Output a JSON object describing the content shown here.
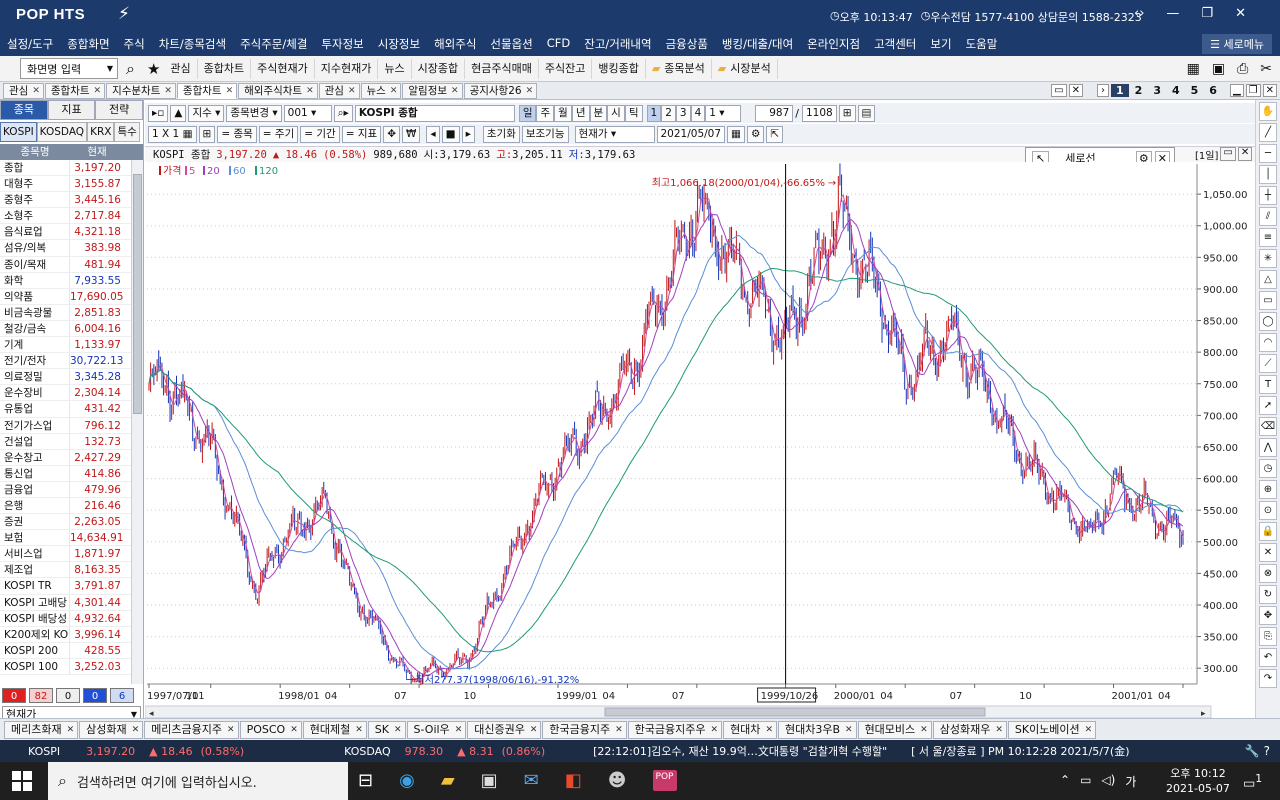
{
  "app": {
    "logo": "POP HTS",
    "clock": "오후 10:13:47",
    "contact": "우수전담 1577-4100 상담문의 1588-2323",
    "restore_menu": "세로메뉴"
  },
  "menu": [
    "설정/도구",
    "종합화면",
    "주식",
    "차트/종목검색",
    "주식주문/체결",
    "투자정보",
    "시장정보",
    "해외주식",
    "선물옵션",
    "CFD",
    "잔고/거래내역",
    "금융상품",
    "뱅킹/대출/대여",
    "온라인지점",
    "고객센터",
    "보기",
    "도움말"
  ],
  "toolbar": {
    "screen_input": "화면명 입력",
    "items": [
      "관심",
      "종합차트",
      "주식현재가",
      "지수현재가",
      "뉴스",
      "시장종합",
      "현금주식매매",
      "주식잔고",
      "뱅킹종합"
    ],
    "folders": [
      "종목분석",
      "시장분석"
    ]
  },
  "window_tabs": [
    "관심",
    "종합차트",
    "지수분차트",
    "종합차트",
    "해외주식차트",
    "관심",
    "뉴스",
    "알림정보",
    "공지사항26"
  ],
  "active_window_tab": 3,
  "window_pages": [
    "1",
    "2",
    "3",
    "4",
    "5",
    "6"
  ],
  "left": {
    "tabs": [
      "종목",
      "지표",
      "전략"
    ],
    "subtabs": [
      "KOSPI",
      "KOSDAQ",
      "KRX",
      "특수"
    ],
    "head_name": "종목명",
    "head_value": "현재",
    "rows": [
      {
        "name": "종합",
        "value": "3,197.20",
        "color": "red"
      },
      {
        "name": "대형주",
        "value": "3,155.87",
        "color": "red"
      },
      {
        "name": "중형주",
        "value": "3,445.16",
        "color": "red"
      },
      {
        "name": "소형주",
        "value": "2,717.84",
        "color": "red"
      },
      {
        "name": "음식료업",
        "value": "4,321.18",
        "color": "red"
      },
      {
        "name": "섬유/의복",
        "value": "383.98",
        "color": "red"
      },
      {
        "name": "종이/목재",
        "value": "481.94",
        "color": "red"
      },
      {
        "name": "화학",
        "value": "7,933.55",
        "color": "blue"
      },
      {
        "name": "의약품",
        "value": "17,690.05",
        "color": "red"
      },
      {
        "name": "비금속광물",
        "value": "2,851.83",
        "color": "red"
      },
      {
        "name": "철강/금속",
        "value": "6,004.16",
        "color": "red"
      },
      {
        "name": "기계",
        "value": "1,133.97",
        "color": "red"
      },
      {
        "name": "전기/전자",
        "value": "30,722.13",
        "color": "blue"
      },
      {
        "name": "의료정밀",
        "value": "3,345.28",
        "color": "blue"
      },
      {
        "name": "운수장비",
        "value": "2,304.14",
        "color": "red"
      },
      {
        "name": "유통업",
        "value": "431.42",
        "color": "red"
      },
      {
        "name": "전기가스업",
        "value": "796.12",
        "color": "red"
      },
      {
        "name": "건설업",
        "value": "132.73",
        "color": "red"
      },
      {
        "name": "운수창고",
        "value": "2,427.29",
        "color": "red"
      },
      {
        "name": "통신업",
        "value": "414.86",
        "color": "red"
      },
      {
        "name": "금융업",
        "value": "479.96",
        "color": "red"
      },
      {
        "name": "은행",
        "value": "216.46",
        "color": "red"
      },
      {
        "name": "증권",
        "value": "2,263.05",
        "color": "red"
      },
      {
        "name": "보험",
        "value": "14,634.91",
        "color": "red"
      },
      {
        "name": "서비스업",
        "value": "1,871.97",
        "color": "red"
      },
      {
        "name": "제조업",
        "value": "8,163.35",
        "color": "red"
      },
      {
        "name": "KOSPI TR",
        "value": "3,791.87",
        "color": "red"
      },
      {
        "name": "KOSPI 고배당",
        "value": "4,301.44",
        "color": "red"
      },
      {
        "name": "KOSPI 배당성",
        "value": "4,932.64",
        "color": "red"
      },
      {
        "name": "K200제외 KO",
        "value": "3,996.14",
        "color": "red"
      },
      {
        "name": "KOSPI 200",
        "value": "428.55",
        "color": "red"
      },
      {
        "name": "KOSPI 100",
        "value": "3,252.03",
        "color": "red"
      }
    ],
    "counts": [
      "0",
      "82",
      "0",
      "0",
      "6"
    ],
    "dropdown": "현재가"
  },
  "chart_controls": {
    "index_label": "지수",
    "change_label": "종목변경",
    "code": "001",
    "name": "KOSPI 종합",
    "periods": [
      "일",
      "주",
      "월",
      "년",
      "분",
      "시",
      "틱"
    ],
    "period_nums": [
      "1",
      "2",
      "3",
      "4"
    ],
    "period_sel": "1",
    "count": "987",
    "total": "1108",
    "row2_a": "1 X 1",
    "row2_b": "= 종목",
    "row2_c": "= 주기",
    "row2_d": "= 기간",
    "row2_e": "= 지표",
    "init_btn": "초기화",
    "aux_btn": "보조기능",
    "price_sel": "현재가",
    "date": "2021/05/07"
  },
  "quote": {
    "name": "KOSPI 종합",
    "price": "3,197.20",
    "change": "▲ 18.46",
    "pct": "(0.58%)",
    "volume": "989,680",
    "open_label": "시:",
    "open": "3,179.63",
    "high_label": "고:",
    "high": "3,205.11",
    "low_label": "저:",
    "low": "3,179.63"
  },
  "overlay": {
    "title": "세로선",
    "period": "[1일]"
  },
  "legend": [
    "가격",
    "5",
    "20",
    "60",
    "120"
  ],
  "chart_data": {
    "type": "candlestick",
    "title": "KOSPI 종합",
    "ylim": [
      275,
      1085
    ],
    "y_ticks": [
      "1,050.00",
      "1,000.00",
      "950.00",
      "900.00",
      "850.00",
      "800.00",
      "750.00",
      "700.00",
      "650.00",
      "600.00",
      "550.00",
      "500.00",
      "450.00",
      "400.00",
      "350.00",
      "300.00"
    ],
    "x_ticks": [
      "1997/07/11",
      "10",
      "1998/01",
      "04",
      "07",
      "10",
      "1999/01",
      "04",
      "07",
      "1999/10/26",
      "2000/01",
      "04",
      "07",
      "10",
      "2001/01",
      "04"
    ],
    "crosshair_label": "1999/10/26",
    "max_annotation": "최고1,066.18(2000/01/04),-66.65%",
    "min_annotation": "최저277.37(1998/06/16),-91.32%",
    "anchors": [
      {
        "date": "1997/07/11",
        "close": 750
      },
      {
        "date": "1997/08",
        "close": 760
      },
      {
        "date": "1997/10",
        "close": 650
      },
      {
        "date": "1997/12",
        "close": 420
      },
      {
        "date": "1998/01",
        "close": 500
      },
      {
        "date": "1998/03",
        "close": 560
      },
      {
        "date": "1998/04",
        "close": 430
      },
      {
        "date": "1998/06/16",
        "close": 285
      },
      {
        "date": "1998/09",
        "close": 310
      },
      {
        "date": "1998/12",
        "close": 560
      },
      {
        "date": "1999/01",
        "close": 620
      },
      {
        "date": "1999/04",
        "close": 760
      },
      {
        "date": "1999/07",
        "close": 1030
      },
      {
        "date": "1999/10/26",
        "close": 820
      },
      {
        "date": "2000/01/04",
        "close": 1020
      },
      {
        "date": "2000/03",
        "close": 880
      },
      {
        "date": "2000/04",
        "close": 760
      },
      {
        "date": "2000/06",
        "close": 830
      },
      {
        "date": "2000/09",
        "close": 640
      },
      {
        "date": "2000/12",
        "close": 505
      },
      {
        "date": "2001/01",
        "close": 590
      },
      {
        "date": "2001/04",
        "close": 510
      }
    ],
    "ma_periods": [
      5,
      20,
      60,
      120
    ]
  },
  "bottom_tabs": [
    "메리츠화재",
    "삼성화재",
    "메리츠금융지주",
    "POSCO",
    "현대제철",
    "SK",
    "S-Oil우",
    "대신증권우",
    "한국금융지주",
    "한국금융지주우",
    "현대차",
    "현대차3우B",
    "현대모비스",
    "삼성화재우",
    "SK이노베이션"
  ],
  "status": {
    "kospi_label": "KOSPI",
    "kospi_price": "3,197.20",
    "kospi_change": "▲ 18.46",
    "kospi_pct": "(0.58%)",
    "kosdaq_label": "KOSDAQ",
    "kosdaq_price": "978.30",
    "kosdaq_change": "▲ 8.31",
    "kosdaq_pct": "(0.86%)",
    "ticker": "[22:12:01]김오수, 재산 19.9억…文대통령 \"검찰개혁 수행할\"",
    "server": "[ 서  울/장종료 ] PM 10:12:28  2021/5/7(金)"
  },
  "taskbar": {
    "search": "검색하려면 여기에 입력하십시오.",
    "ime": "가",
    "time": "오후 10:12",
    "date": "2021-05-07",
    "notif": "1"
  },
  "colors": {
    "up": "#c01818",
    "down": "#1536b8",
    "ma5": "#d04a9a",
    "ma20": "#a040c0",
    "ma60": "#5a8fd8",
    "ma120": "#1f9a73"
  }
}
